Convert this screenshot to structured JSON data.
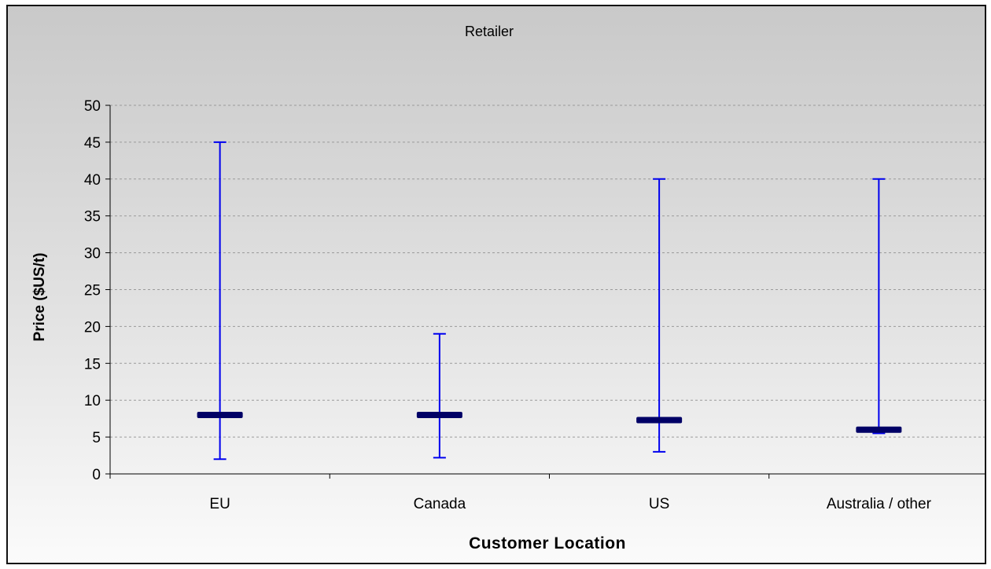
{
  "chart_data": {
    "type": "hi-lo-close",
    "title": "Retailer",
    "xlabel": "Customer Location",
    "ylabel": "Price ($US/t)",
    "ylim": [
      0,
      50
    ],
    "ytick_step": 5,
    "grid": true,
    "categories": [
      "EU",
      "Canada",
      "US",
      "Australia / other"
    ],
    "high": [
      45,
      19,
      40,
      40
    ],
    "low": [
      2,
      2.2,
      3,
      5.5
    ],
    "mid": [
      8,
      8,
      7.3,
      6
    ],
    "colors": {
      "range_line": "#0000ee",
      "mid_bar": "#000066",
      "grid": "#9a9a9a"
    }
  }
}
